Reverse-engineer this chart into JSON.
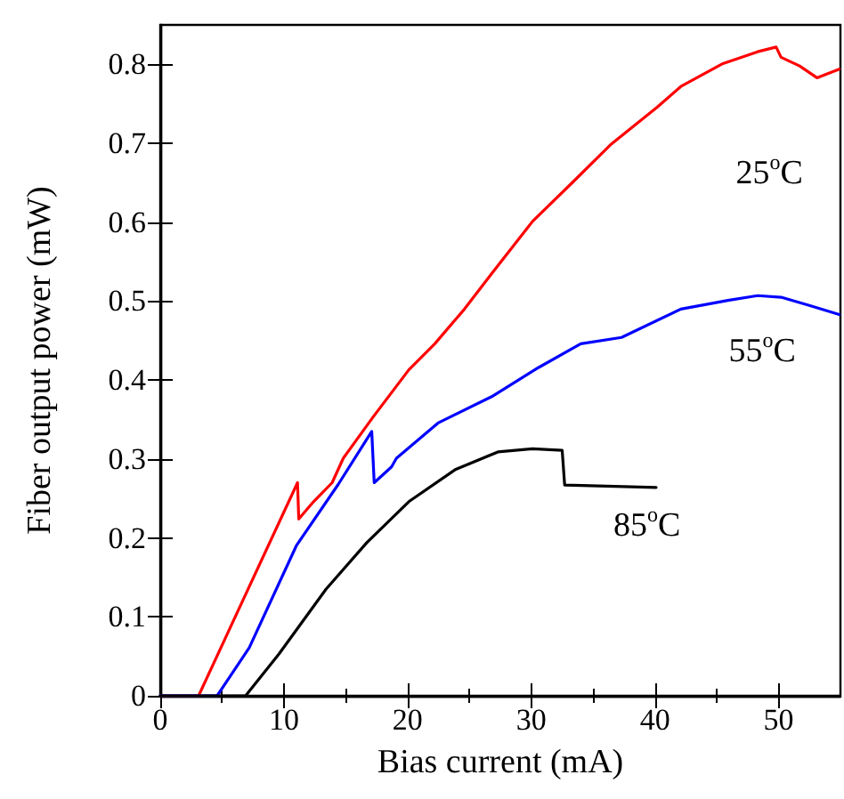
{
  "chart_data": {
    "type": "line",
    "xlabel": "Bias current (mA)",
    "ylabel": "Fiber output power (mW)",
    "xlim": [
      0,
      55
    ],
    "xticks": [
      0,
      10,
      20,
      30,
      40,
      50
    ],
    "ylim": [
      0,
      0.85
    ],
    "yticks": [
      0,
      0.1,
      0.2,
      0.3,
      0.4,
      0.5,
      0.6,
      0.7,
      0.8
    ],
    "grid": false,
    "legend": false,
    "marker": "none",
    "line_style": "solid",
    "series": [
      {
        "name": "25$^{o}$C",
        "color": "#ff0000",
        "x": [
          0,
          3.1,
          11.1,
          11.2,
          12.4,
          13.9,
          14.8,
          17.2,
          20.1,
          22.2,
          24.6,
          26.8,
          30.1,
          33.5,
          36.4,
          40.2,
          42.1,
          45.5,
          48.3,
          49.8,
          50.2,
          51.7,
          53.1,
          54.9
        ],
        "values": [
          0,
          0,
          0.27,
          0.224,
          0.246,
          0.27,
          0.301,
          0.353,
          0.413,
          0.446,
          0.49,
          0.535,
          0.601,
          0.653,
          0.698,
          0.746,
          0.772,
          0.801,
          0.816,
          0.822,
          0.809,
          0.798,
          0.783,
          0.794
        ]
      },
      {
        "name": "55$^{o}$C",
        "color": "#0000ff",
        "x": [
          0,
          4.6,
          7.2,
          11,
          14.4,
          17.1,
          17.3,
          18.7,
          19.1,
          22.5,
          26.8,
          30.6,
          34,
          37.3,
          42.1,
          45.9,
          48.3,
          50.2,
          52.6,
          54.9
        ],
        "values": [
          0,
          0,
          0.061,
          0.19,
          0.268,
          0.335,
          0.27,
          0.29,
          0.301,
          0.346,
          0.379,
          0.416,
          0.446,
          0.454,
          0.49,
          0.501,
          0.507,
          0.505,
          0.494,
          0.483
        ]
      },
      {
        "name": "85$^{o}$C",
        "color": "#000000",
        "x": [
          0,
          6.9,
          9.6,
          13.4,
          16.7,
          20.1,
          23.9,
          27.3,
          30.1,
          32.5,
          32.7,
          35.4,
          40.1
        ],
        "values": [
          0,
          0,
          0.053,
          0.135,
          0.194,
          0.246,
          0.287,
          0.309,
          0.313,
          0.311,
          0.267,
          0.266,
          0.264
        ]
      }
    ]
  }
}
